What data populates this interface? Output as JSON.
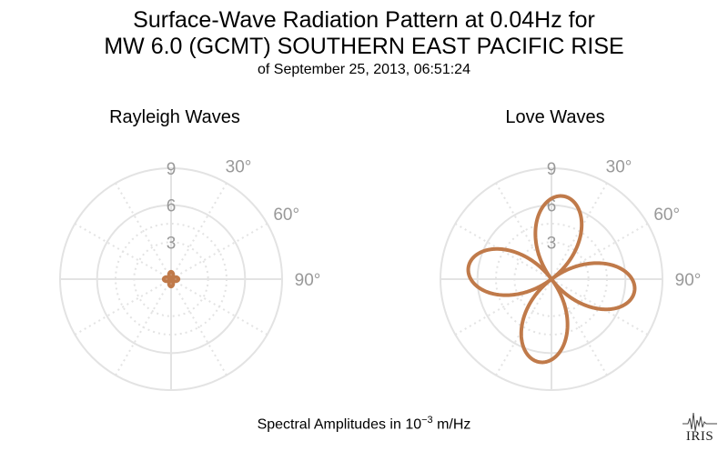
{
  "title": {
    "line1": "Surface-Wave Radiation Pattern at 0.04Hz for",
    "line2": "MW 6.0 (GCMT) SOUTHERN EAST PACIFIC RISE",
    "subtitle": "of September 25, 2013, 06:51:24"
  },
  "footer": {
    "prefix": "Spectral Amplitudes in ",
    "base": "10",
    "exponent": "−3",
    "suffix": " m/Hz"
  },
  "logo": {
    "text": "IRIS"
  },
  "colors": {
    "pattern": "#c07a4a",
    "grid": "#e3e3e3",
    "tick_label": "#999999"
  },
  "chart_data": [
    {
      "type": "polar",
      "title": "Rayleigh Waves",
      "radial_ticks": [
        "3",
        "6",
        "9"
      ],
      "radial_max": 9,
      "angle_ticks": [
        "30°",
        "60°",
        "90°"
      ],
      "direction": "clockwise from north",
      "series": [
        {
          "shape": "four-lobed",
          "peak_amplitude": 0.6,
          "lobe_azimuths_deg": [
            0,
            90,
            180,
            270
          ]
        }
      ]
    },
    {
      "type": "polar",
      "title": "Love Waves",
      "radial_ticks": [
        "3",
        "6",
        "9"
      ],
      "radial_max": 9,
      "angle_ticks": [
        "30°",
        "60°",
        "90°"
      ],
      "direction": "clockwise from north",
      "series": [
        {
          "shape": "four-lobed",
          "peak_amplitude": 6.8,
          "lobe_azimuths_deg": [
            8,
            98,
            188,
            278
          ]
        }
      ]
    }
  ]
}
